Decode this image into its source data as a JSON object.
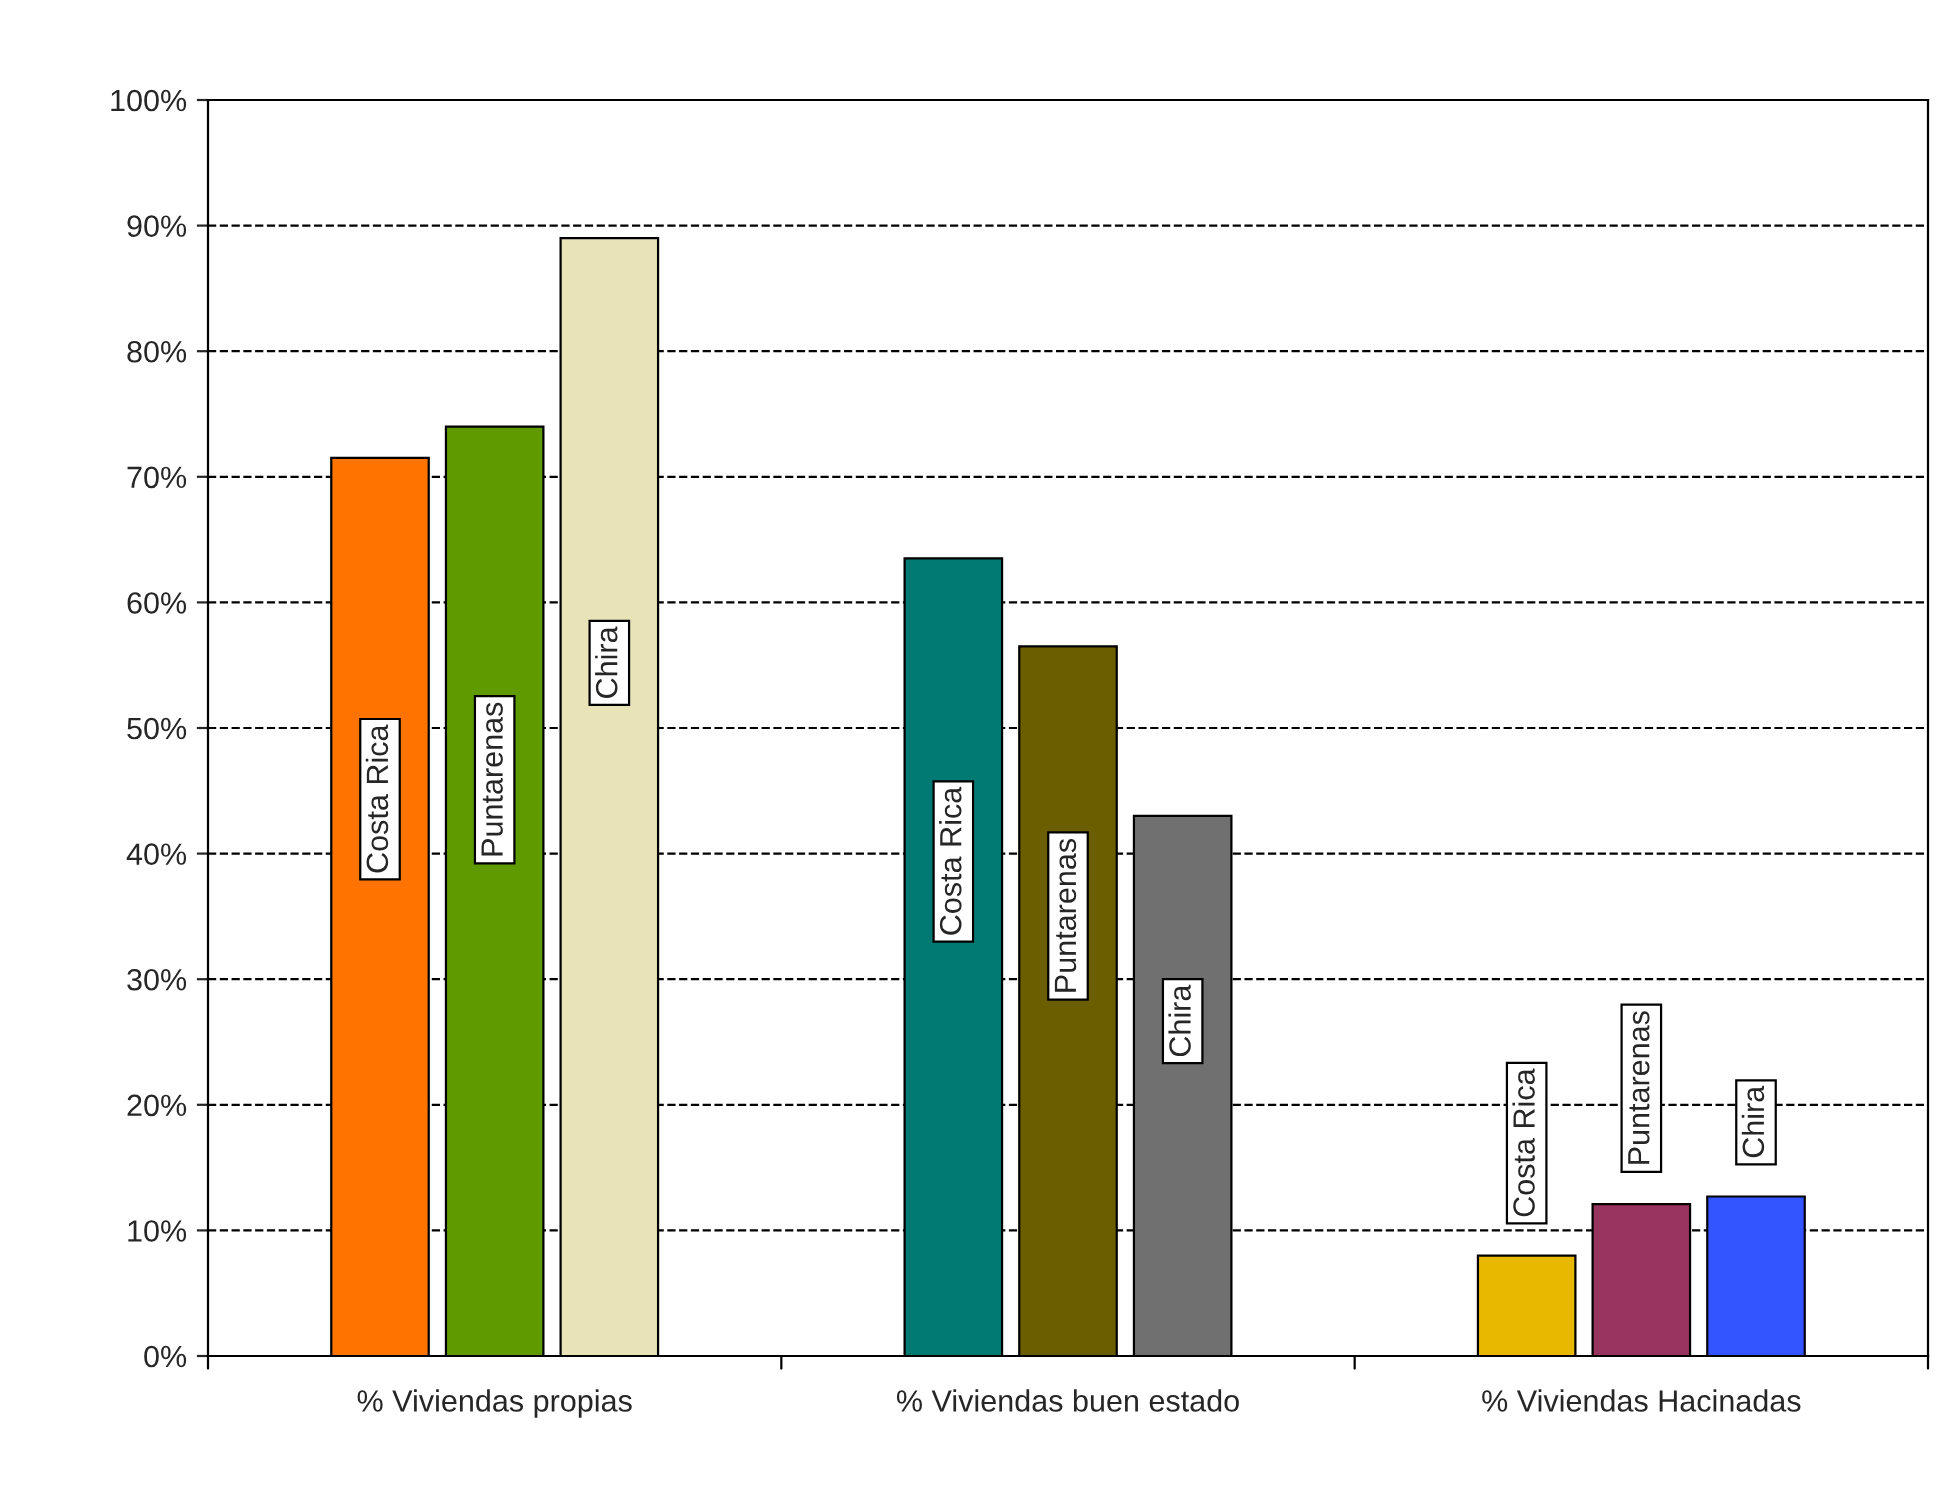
{
  "chart_data": {
    "type": "bar",
    "categories": [
      "% Viviendas propias",
      "% Viviendas buen estado",
      "% Viviendas Hacinadas"
    ],
    "series": [
      {
        "name": "Costa Rica",
        "colors": [
          "#ff7400",
          "#007a73",
          "#e8b800"
        ],
        "values": [
          71.5,
          63.5,
          8.0
        ]
      },
      {
        "name": "Puntarenas",
        "colors": [
          "#5f9a00",
          "#6b5e00",
          "#99335f"
        ],
        "values": [
          74.0,
          56.5,
          12.1
        ]
      },
      {
        "name": "Chira",
        "colors": [
          "#e8e4b8",
          "#707070",
          "#3355ff"
        ],
        "values": [
          89.0,
          43.0,
          12.7
        ]
      }
    ],
    "ylim": [
      0,
      100
    ],
    "yticks": [
      {
        "value": 0,
        "label": "0%"
      },
      {
        "value": 10,
        "label": "10%"
      },
      {
        "value": 20,
        "label": "20%"
      },
      {
        "value": 30,
        "label": "30%"
      },
      {
        "value": 40,
        "label": "40%"
      },
      {
        "value": 50,
        "label": "50%"
      },
      {
        "value": 60,
        "label": "60%"
      },
      {
        "value": 70,
        "label": "70%"
      },
      {
        "value": 80,
        "label": "80%"
      },
      {
        "value": 90,
        "label": "90%"
      },
      {
        "value": 100,
        "label": "100%"
      }
    ],
    "grid": "y",
    "line_style": "dashed",
    "legend": false
  }
}
